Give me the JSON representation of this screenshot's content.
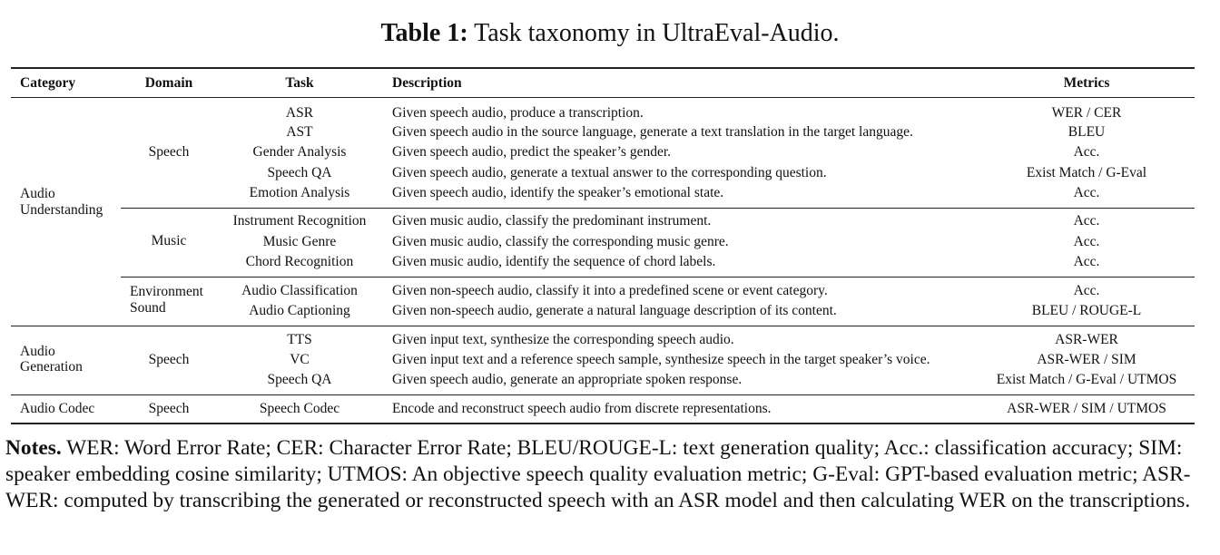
{
  "title": {
    "label": "Table 1:",
    "text": "Task taxonomy in UltraEval-Audio."
  },
  "headers": {
    "category": "Category",
    "domain": "Domain",
    "task": "Task",
    "description": "Description",
    "metrics": "Metrics"
  },
  "groups": {
    "understanding": {
      "category_line1": "Audio",
      "category_line2": "Understanding",
      "domain_speech": "Speech",
      "domain_music": "Music",
      "domain_env_line1": "Environment",
      "domain_env_line2": "Sound"
    },
    "generation": {
      "category_line1": "Audio",
      "category_line2": "Generation",
      "domain_speech": "Speech"
    },
    "codec": {
      "category": "Audio Codec",
      "domain_speech": "Speech"
    }
  },
  "rows": [
    {
      "task": "ASR",
      "description": "Given speech audio, produce a transcription.",
      "metrics": "WER / CER"
    },
    {
      "task": "AST",
      "description": "Given speech audio in the source language, generate a text translation in the target language.",
      "metrics": "BLEU"
    },
    {
      "task": "Gender Analysis",
      "description": "Given speech audio, predict the speaker’s gender.",
      "metrics": "Acc."
    },
    {
      "task": "Speech QA",
      "description": "Given speech audio, generate a textual answer to the corresponding question.",
      "metrics": "Exist Match / G-Eval"
    },
    {
      "task": "Emotion Analysis",
      "description": "Given speech audio, identify the speaker’s emotional state.",
      "metrics": "Acc."
    },
    {
      "task": "Instrument Recognition",
      "description": "Given music audio, classify the predominant instrument.",
      "metrics": "Acc."
    },
    {
      "task": "Music Genre",
      "description": "Given music audio, classify the corresponding music genre.",
      "metrics": "Acc."
    },
    {
      "task": "Chord Recognition",
      "description": "Given music audio, identify the sequence of chord labels.",
      "metrics": "Acc."
    },
    {
      "task": "Audio Classification",
      "description": "Given non-speech audio, classify it into a predefined scene or event category.",
      "metrics": "Acc."
    },
    {
      "task": "Audio Captioning",
      "description": "Given non-speech audio, generate a natural language description of its content.",
      "metrics": "BLEU / ROUGE-L"
    },
    {
      "task": "TTS",
      "description": "Given input text, synthesize the corresponding speech audio.",
      "metrics": "ASR-WER"
    },
    {
      "task": "VC",
      "description": "Given input text and a reference speech sample, synthesize speech in the target speaker’s voice.",
      "metrics": "ASR-WER / SIM"
    },
    {
      "task": "Speech QA",
      "description": "Given speech audio, generate an appropriate spoken response.",
      "metrics": "Exist Match / G-Eval / UTMOS"
    },
    {
      "task": "Speech Codec",
      "description": "Encode and reconstruct speech audio from discrete representations.",
      "metrics": "ASR-WER / SIM / UTMOS"
    }
  ],
  "notes": {
    "label": "Notes.",
    "text": "WER: Word Error Rate; CER: Character Error Rate; BLEU/ROUGE-L: text generation quality; Acc.: classification accuracy; SIM: speaker embedding cosine similarity; UTMOS: An objective speech quality evaluation metric; G-Eval: GPT-based evaluation metric; ASR-WER: computed by transcribing the generated or reconstructed speech with an ASR model and then calculating WER on the transcriptions."
  }
}
